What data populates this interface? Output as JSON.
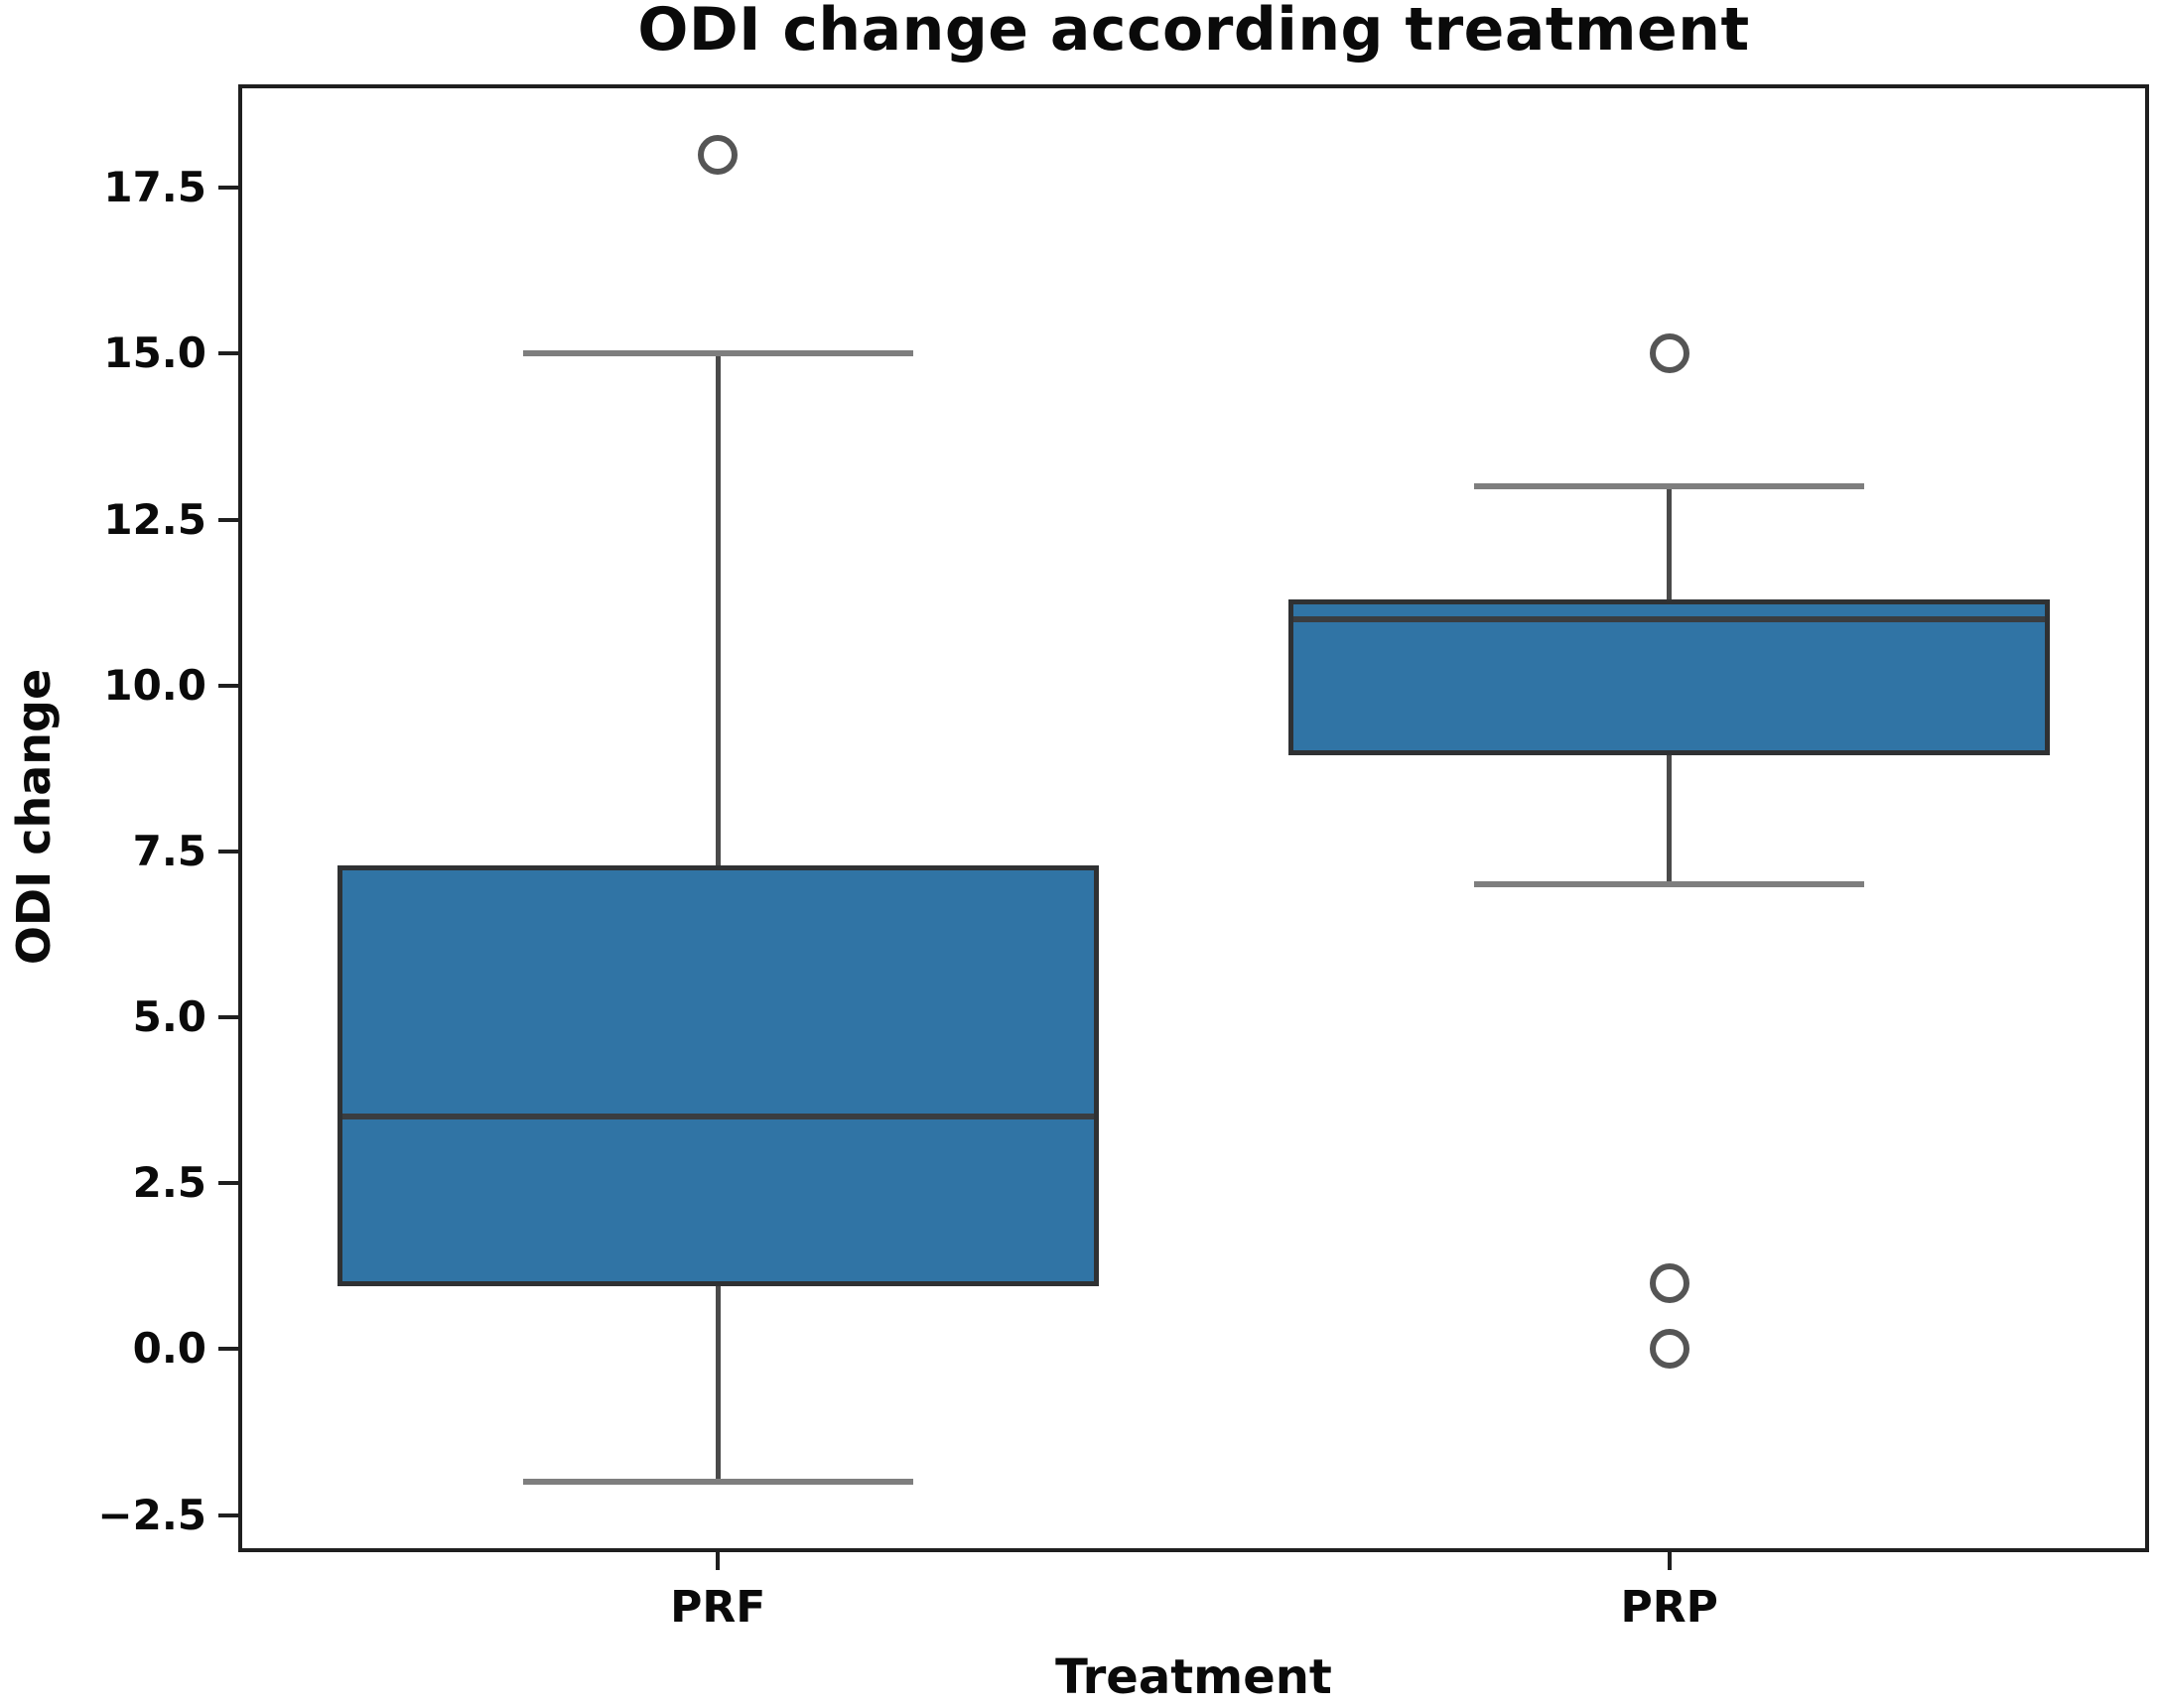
{
  "chart_data": {
    "type": "box",
    "title": "ODI change according treatment",
    "xlabel": "Treatment",
    "ylabel": "ODI change",
    "categories": [
      "PRF",
      "PRP"
    ],
    "series": [
      {
        "name": "PRF",
        "whisker_low": -2,
        "q1": 1,
        "median": 3.5,
        "q3": 7.25,
        "whisker_high": 15,
        "outliers": [
          18
        ]
      },
      {
        "name": "PRP",
        "whisker_low": 7,
        "q1": 9,
        "median": 11,
        "q3": 11.25,
        "whisker_high": 13,
        "outliers": [
          15,
          1,
          0
        ]
      }
    ],
    "ylim": [
      -3,
      19
    ],
    "yticks": [
      {
        "value": 17.5,
        "label": "17.5"
      },
      {
        "value": 15.0,
        "label": "15.0"
      },
      {
        "value": 12.5,
        "label": "12.5"
      },
      {
        "value": 10.0,
        "label": "10.0"
      },
      {
        "value": 7.5,
        "label": "7.5"
      },
      {
        "value": 5.0,
        "label": "5.0"
      },
      {
        "value": 2.5,
        "label": "2.5"
      },
      {
        "value": 0.0,
        "label": "0.0"
      },
      {
        "value": -2.5,
        "label": "−2.5"
      }
    ],
    "grid": false,
    "legend": false,
    "colors": {
      "box_fill": "#3074a5",
      "box_edge": "#2f3133",
      "median_line": "#3a3d40",
      "whisker_line": "#4a4a4a",
      "cap_line": "#7e7e7e",
      "outlier_ring": "#555555",
      "spine": "#1f1f1f",
      "text": "#0a0a0a",
      "background": "#ffffff"
    }
  }
}
